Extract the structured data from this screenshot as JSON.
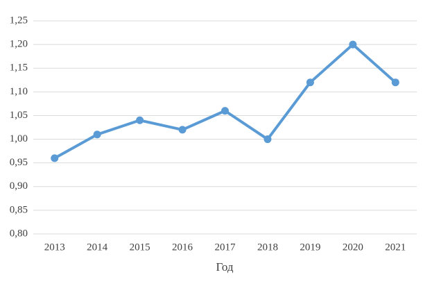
{
  "chart_data": {
    "type": "line",
    "x_label": "Год",
    "categories": [
      "2013",
      "2014",
      "2015",
      "2016",
      "2017",
      "2018",
      "2019",
      "2020",
      "2021"
    ],
    "values": [
      0.96,
      1.01,
      1.04,
      1.02,
      1.06,
      1.0,
      1.12,
      1.2,
      1.12
    ],
    "color": "#5b9bd5",
    "ylim": [
      0.8,
      1.25
    ],
    "yticks": [
      {
        "value": 0.8,
        "label": "0,80"
      },
      {
        "value": 0.85,
        "label": "0,85"
      },
      {
        "value": 0.9,
        "label": "0,90"
      },
      {
        "value": 0.95,
        "label": "0,95"
      },
      {
        "value": 1.0,
        "label": "1,00"
      },
      {
        "value": 1.05,
        "label": "1,05"
      },
      {
        "value": 1.1,
        "label": "1,10"
      },
      {
        "value": 1.15,
        "label": "1,15"
      },
      {
        "value": 1.2,
        "label": "1,20"
      },
      {
        "value": 1.25,
        "label": "1,25"
      }
    ],
    "grid": true
  }
}
